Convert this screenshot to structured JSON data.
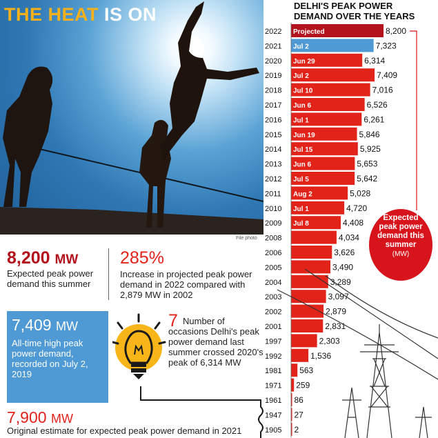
{
  "headline": {
    "part1": "THE HEAT ",
    "part2": "IS ON"
  },
  "photo_credit": "File photo",
  "stats": {
    "demand_summer": {
      "value": "8,200",
      "unit": "MW",
      "description": "Expected peak power demand this summer"
    },
    "increase": {
      "value": "285%",
      "description": "Increase in projected peak power demand in 2022 compared with 2,879 MW in 2002"
    },
    "all_time_high": {
      "value": "7,409",
      "unit": "MW",
      "description": "All-time high peak power demand, recorded on July 2, 2019"
    },
    "occasions": {
      "value": "7",
      "description": "Number of occasions Delhi's peak power demand last summer crossed 2020's peak of 6,314 MW"
    },
    "original_estimate": {
      "value": "7,900",
      "unit": "MW",
      "description": "Original estimate for expected peak power demand in 2021"
    }
  },
  "callout": {
    "text": "Expected peak power demand this summer",
    "unit": "(MW)"
  },
  "colors": {
    "bar_red": "#e2231a",
    "bar_dark_red": "#b3111c",
    "bar_blue": "#4f9ad4",
    "headline_yellow": "#f5b01a"
  },
  "chart_data": {
    "type": "bar",
    "orientation": "horizontal",
    "title": "DELHI'S PEAK POWER DEMAND OVER THE YEARS",
    "xlim": [
      0,
      8200
    ],
    "categories": [
      "2022",
      "2021",
      "2020",
      "2019",
      "2018",
      "2017",
      "2016",
      "2015",
      "2014",
      "2013",
      "2012",
      "2011",
      "2010",
      "2009",
      "2008",
      "2006",
      "2005",
      "2004",
      "2003",
      "2002",
      "2001",
      "1997",
      "1992",
      "1981",
      "1971",
      "1961",
      "1947",
      "1905"
    ],
    "values": [
      8200,
      7323,
      6314,
      7409,
      7016,
      6526,
      6261,
      5846,
      5925,
      5653,
      5642,
      5028,
      4720,
      4408,
      4034,
      3626,
      3490,
      3289,
      3097,
      2879,
      2831,
      2303,
      1536,
      563,
      259,
      86,
      27,
      2
    ],
    "value_labels": [
      "8,200",
      "7,323",
      "6,314",
      "7,409",
      "7,016",
      "6,526",
      "6,261",
      "5,846",
      "5,925",
      "5,653",
      "5,642",
      "5,028",
      "4,720",
      "4,408",
      "4,034",
      "3,626",
      "3,490",
      "3,289",
      "3,097",
      "2,879",
      "2,831",
      "2,303",
      "1,536",
      "563",
      "259",
      "86",
      "27",
      "2"
    ],
    "bar_labels": [
      "Projected",
      "Jul 2",
      "Jun 29",
      "Jul 2",
      "Jul 10",
      "Jun 6",
      "Jul 1",
      "Jun 19",
      "Jul 15",
      "Jun 6",
      "Jul 5",
      "Aug 2",
      "Jul 1",
      "Jul 8",
      "",
      "",
      "",
      "",
      "",
      "",
      "",
      "",
      "",
      "",
      "",
      "",
      "",
      ""
    ],
    "bar_styles": [
      "projected",
      "current",
      "normal",
      "normal",
      "normal",
      "normal",
      "normal",
      "normal",
      "normal",
      "normal",
      "normal",
      "normal",
      "normal",
      "normal",
      "normal",
      "normal",
      "normal",
      "normal",
      "normal",
      "normal",
      "normal",
      "normal",
      "normal",
      "normal",
      "normal",
      "normal",
      "normal",
      "normal"
    ]
  }
}
